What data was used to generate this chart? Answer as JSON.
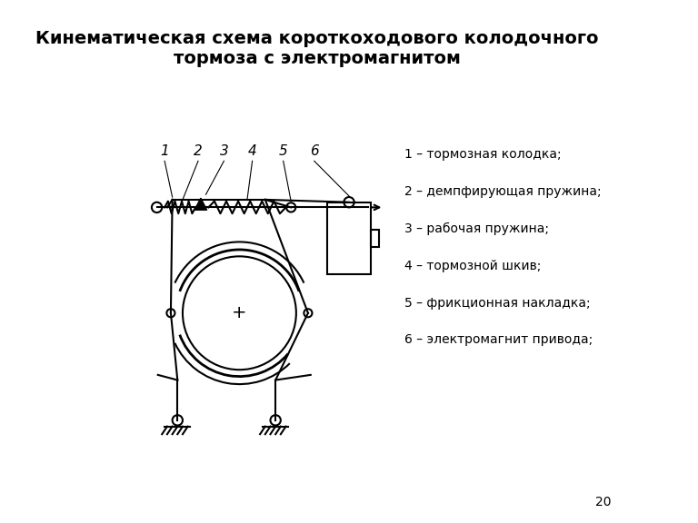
{
  "title": "Кинематическая схема короткоходового колодочного\nтормоза с электромагнитом",
  "title_fontsize": 14,
  "legend_items": [
    "1 – тормозная колодка;",
    "2 – демпфирующая пружина;",
    "3 – рабочая пружина;",
    "4 – тормозной шкив;",
    "5 – фрикционная накладка;",
    "6 – электромагнит привода;"
  ],
  "background_color": "#ffffff",
  "line_color": "#000000",
  "page_number": "20"
}
